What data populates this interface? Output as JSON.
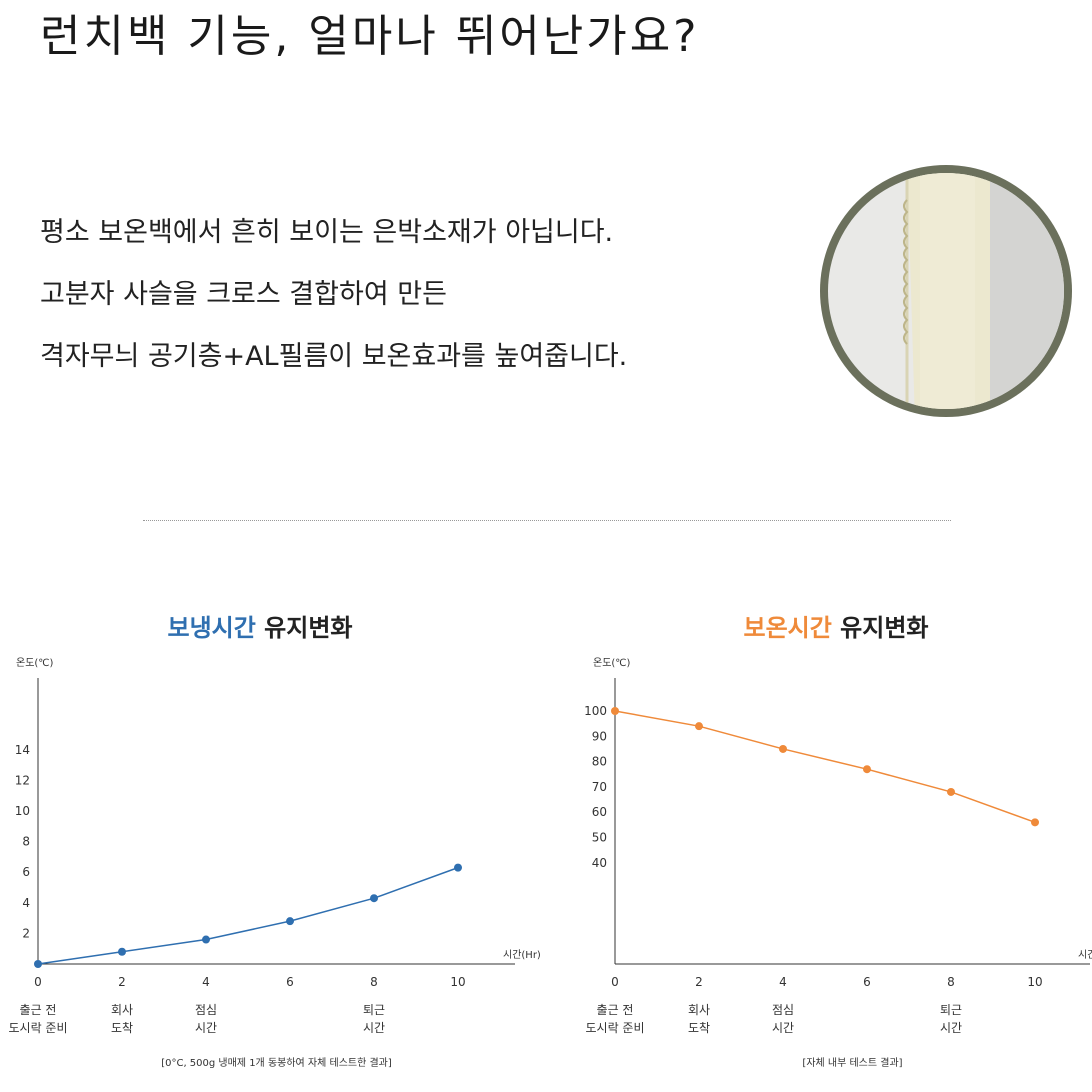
{
  "header": {
    "title": "런치백 기능, 얼마나 뛰어난가요?"
  },
  "description": {
    "lines": [
      "평소 보온백에서 흔히 보이는 은박소재가 아닙니다.",
      "고분자 사슬을 크로스 결합하여 만든",
      "격자무늬 공기층+AL필름이 보온효과를 높여줍니다."
    ]
  },
  "colors": {
    "cold": "#2f6fb0",
    "warm": "#ef8a3a",
    "photo_ring": "#6b705c"
  },
  "chart_data": [
    {
      "type": "line",
      "title_lead": "보냉시간",
      "title_rest": "유지변화",
      "ylabel": "온도(℃)",
      "xlabel": "시간(Hr)",
      "x": [
        0,
        2,
        4,
        6,
        8,
        10
      ],
      "x_ticks": [
        "0",
        "2",
        "4",
        "6",
        "8",
        "10"
      ],
      "y_ticks": [
        "2",
        "4",
        "6",
        "8",
        "10",
        "12",
        "14"
      ],
      "ylim": [
        0,
        20
      ],
      "series": [
        {
          "values": [
            0,
            0.8,
            1.6,
            2.8,
            4.3,
            6.3
          ]
        }
      ],
      "x_sublabels": [
        {
          "x": 0,
          "lines": [
            "출근 전",
            "도시락 준비"
          ]
        },
        {
          "x": 2,
          "lines": [
            "회사",
            "도착"
          ]
        },
        {
          "x": 4,
          "lines": [
            "점심",
            "시간"
          ]
        },
        {
          "x": 8,
          "lines": [
            "퇴근",
            "시간"
          ]
        }
      ],
      "note": "[0°C, 500g 냉매제 1개 동봉하여 자체 테스트한 결과]"
    },
    {
      "type": "line",
      "title_lead": "보온시간",
      "title_rest": "유지변화",
      "ylabel": "온도(℃)",
      "xlabel": "시간(Hr)",
      "x": [
        0,
        2,
        4,
        6,
        8,
        10
      ],
      "x_ticks": [
        "0",
        "2",
        "4",
        "6",
        "8",
        "10"
      ],
      "y_ticks": [
        "40",
        "50",
        "60",
        "70",
        "80",
        "90",
        "100"
      ],
      "ylim": [
        0,
        110
      ],
      "series": [
        {
          "values": [
            100,
            94,
            85,
            77,
            68,
            56
          ]
        }
      ],
      "x_sublabels": [
        {
          "x": 0,
          "lines": [
            "출근 전",
            "도시락 준비"
          ]
        },
        {
          "x": 2,
          "lines": [
            "회사",
            "도착"
          ]
        },
        {
          "x": 4,
          "lines": [
            "점심",
            "시간"
          ]
        },
        {
          "x": 8,
          "lines": [
            "퇴근",
            "시간"
          ]
        }
      ],
      "note": "[자체 내부 테스트 결과]"
    }
  ]
}
